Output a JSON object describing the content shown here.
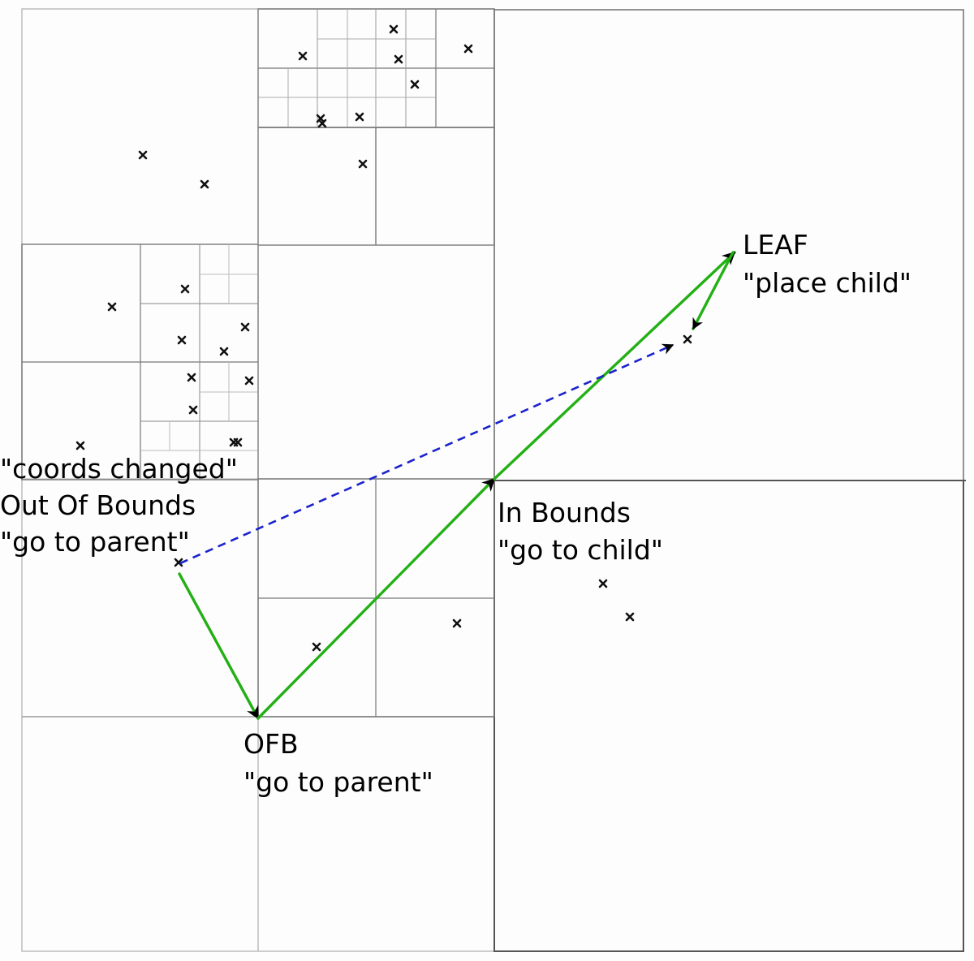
{
  "labels": {
    "leaf_title": "LEAF",
    "leaf_action": "\"place child\"",
    "in_bounds_title": "In Bounds",
    "in_bounds_action": "\"go to child\"",
    "coords_changed": "\"coords changed\"",
    "out_of_bounds_title": "Out Of Bounds",
    "out_of_bounds_action": "\"go to parent\"",
    "ofb_title": "OFB",
    "ofb_action": "\"go to parent\""
  },
  "colors": {
    "background": "#fdfdfd",
    "grid_dark": "#555555",
    "grid_light": "#9a9a9a",
    "grid_faint": "#c8c8c8",
    "path_green": "#22b014",
    "path_blue_dashed": "#1a22cc",
    "arrowhead": "#000000",
    "point_marker": "#111111"
  },
  "legend_notes": []
}
